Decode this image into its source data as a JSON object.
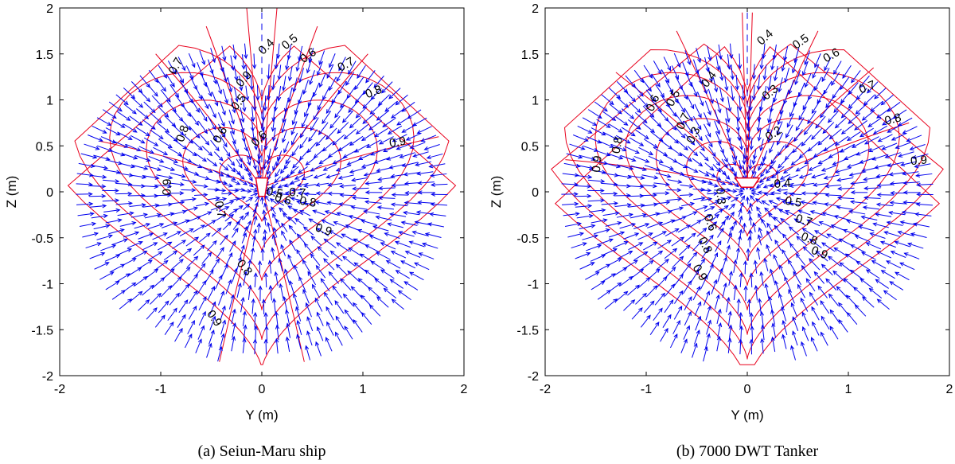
{
  "chart_data": [
    {
      "type": "vector-field-contour",
      "caption": "(a) Seiun-Maru ship",
      "xlabel": "Y (m)",
      "ylabel": "Z (m)",
      "xlim": [
        -2,
        2
      ],
      "ylim": [
        -2,
        2
      ],
      "xticks": [
        "-2",
        "-1",
        "0",
        "1",
        "2"
      ],
      "yticks": [
        "2",
        "1.5",
        "1",
        "0.5",
        "0",
        "-0.5",
        "-1",
        "-1.5",
        "-2"
      ],
      "hull": {
        "half_width": 0.06,
        "top": 0.15,
        "bottom": -0.05
      },
      "contour_levels": [
        0.4,
        0.5,
        0.6,
        0.7,
        0.8,
        0.9
      ],
      "contour_color": "#e8001c",
      "vector_color": "#0000ee",
      "contour_labels": [
        {
          "text": "0.4",
          "y": 0.07,
          "z": 1.55
        },
        {
          "text": "0.5",
          "y": 0.3,
          "z": 1.6
        },
        {
          "text": "0.6",
          "y": 0.48,
          "z": 1.45
        },
        {
          "text": "0.7",
          "y": 0.85,
          "z": 1.35
        },
        {
          "text": "0.7",
          "y": -0.82,
          "z": 1.35
        },
        {
          "text": "0.8",
          "y": 1.12,
          "z": 1.05
        },
        {
          "text": "0.9",
          "y": 1.35,
          "z": 0.5
        },
        {
          "text": "0.5",
          "y": -0.2,
          "z": 0.95
        },
        {
          "text": "0.9",
          "y": -0.15,
          "z": 1.2
        },
        {
          "text": "0.6",
          "y": -0.38,
          "z": 0.6
        },
        {
          "text": "0.8",
          "y": -0.75,
          "z": 0.62
        },
        {
          "text": "0.9",
          "y": -0.9,
          "z": 0.05
        },
        {
          "text": "0.6",
          "y": 0.0,
          "z": 0.55
        },
        {
          "text": "0.7",
          "y": -0.45,
          "z": -0.2
        },
        {
          "text": "0.5",
          "y": 0.12,
          "z": -0.05
        },
        {
          "text": "0.6",
          "y": 0.2,
          "z": -0.12
        },
        {
          "text": "0.7",
          "y": 0.35,
          "z": -0.05
        },
        {
          "text": "0.8",
          "y": 0.45,
          "z": -0.15
        },
        {
          "text": "0.9",
          "y": 0.6,
          "z": -0.45
        },
        {
          "text": "0.8",
          "y": -0.2,
          "z": -0.85
        },
        {
          "text": "0.9",
          "y": -0.5,
          "z": -1.4
        }
      ]
    },
    {
      "type": "vector-field-contour",
      "caption": "(b) 7000 DWT Tanker",
      "xlabel": "Y (m)",
      "ylabel": "Z (m)",
      "xlim": [
        -2,
        2
      ],
      "ylim": [
        -2,
        2
      ],
      "xticks": [
        "-2",
        "-1",
        "0",
        "1",
        "2"
      ],
      "yticks": [
        "2",
        "1.5",
        "1",
        "0.5",
        "0",
        "-0.5",
        "-1",
        "-1.5",
        "-2"
      ],
      "hull": {
        "half_width": 0.12,
        "top": 0.15,
        "bottom": 0.05
      },
      "contour_levels": [
        0.2,
        0.3,
        0.4,
        0.5,
        0.6,
        0.7,
        0.8,
        0.9
      ],
      "contour_color": "#e8001c",
      "vector_color": "#0000ee",
      "contour_labels": [
        {
          "text": "0.4",
          "y": 0.2,
          "z": 1.65
        },
        {
          "text": "0.5",
          "y": 0.55,
          "z": 1.6
        },
        {
          "text": "0.6",
          "y": 0.85,
          "z": 1.45
        },
        {
          "text": "0.7",
          "y": 1.2,
          "z": 1.1
        },
        {
          "text": "0.8",
          "y": 1.45,
          "z": 0.75
        },
        {
          "text": "0.9",
          "y": 1.7,
          "z": 0.3
        },
        {
          "text": "0.4",
          "y": -0.35,
          "z": 1.2
        },
        {
          "text": "0.3",
          "y": 0.25,
          "z": 1.05
        },
        {
          "text": "0.5",
          "y": -0.7,
          "z": 1.0
        },
        {
          "text": "0.6",
          "y": -0.9,
          "z": 0.95
        },
        {
          "text": "0.7",
          "y": -0.6,
          "z": 0.75
        },
        {
          "text": "0.3",
          "y": -0.5,
          "z": 0.6
        },
        {
          "text": "0.2",
          "y": 0.28,
          "z": 0.6
        },
        {
          "text": "0.8",
          "y": -1.25,
          "z": 0.5
        },
        {
          "text": "0.9",
          "y": -1.45,
          "z": 0.3
        },
        {
          "text": "0.3",
          "y": -0.3,
          "z": -0.05
        },
        {
          "text": "0.4",
          "y": 0.35,
          "z": 0.05
        },
        {
          "text": "0.5",
          "y": 0.45,
          "z": -0.15
        },
        {
          "text": "0.6",
          "y": -0.4,
          "z": -0.35
        },
        {
          "text": "0.7",
          "y": 0.55,
          "z": -0.35
        },
        {
          "text": "0.8",
          "y": 0.6,
          "z": -0.55
        },
        {
          "text": "0.9",
          "y": 0.7,
          "z": -0.7
        },
        {
          "text": "0.8",
          "y": -0.45,
          "z": -0.6
        },
        {
          "text": "0.9",
          "y": -0.5,
          "z": -0.9
        }
      ]
    }
  ]
}
